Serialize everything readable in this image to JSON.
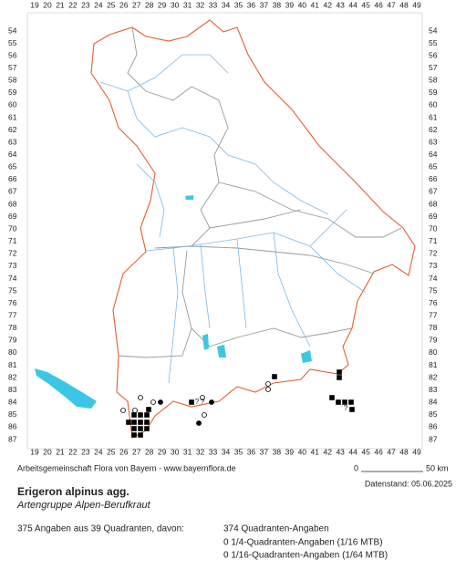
{
  "map": {
    "x_labels": [
      19,
      20,
      21,
      22,
      23,
      24,
      25,
      26,
      27,
      28,
      29,
      30,
      31,
      32,
      33,
      34,
      35,
      36,
      37,
      38,
      39,
      40,
      41,
      42,
      43,
      44,
      45,
      46,
      47,
      48,
      49
    ],
    "y_labels": [
      54,
      55,
      56,
      57,
      58,
      59,
      60,
      61,
      62,
      63,
      64,
      65,
      66,
      67,
      68,
      69,
      70,
      71,
      72,
      73,
      74,
      75,
      76,
      77,
      78,
      79,
      80,
      81,
      82,
      83,
      84,
      85,
      86,
      87
    ],
    "marker_labels": [
      "?",
      "?",
      "?"
    ]
  },
  "footer": {
    "credits": "Arbeitsgemeinschaft Flora von Bayern - www.bayernflora.de",
    "scale_start": "0",
    "scale_end": "50 km",
    "date": "Datenstand: 05.06.2025",
    "title": "Erigeron alpinus agg.",
    "subtitle": "Artengruppe Alpen-Berufkraut",
    "summary": "375 Angaben aus 39 Quadranten, davon:",
    "details": [
      "374 Quadranten-Angaben",
      "0 1/4-Quadranten-Angaben (1/16 MTB)",
      "0 1/16-Quadranten-Angaben (1/64 MTB)"
    ]
  }
}
